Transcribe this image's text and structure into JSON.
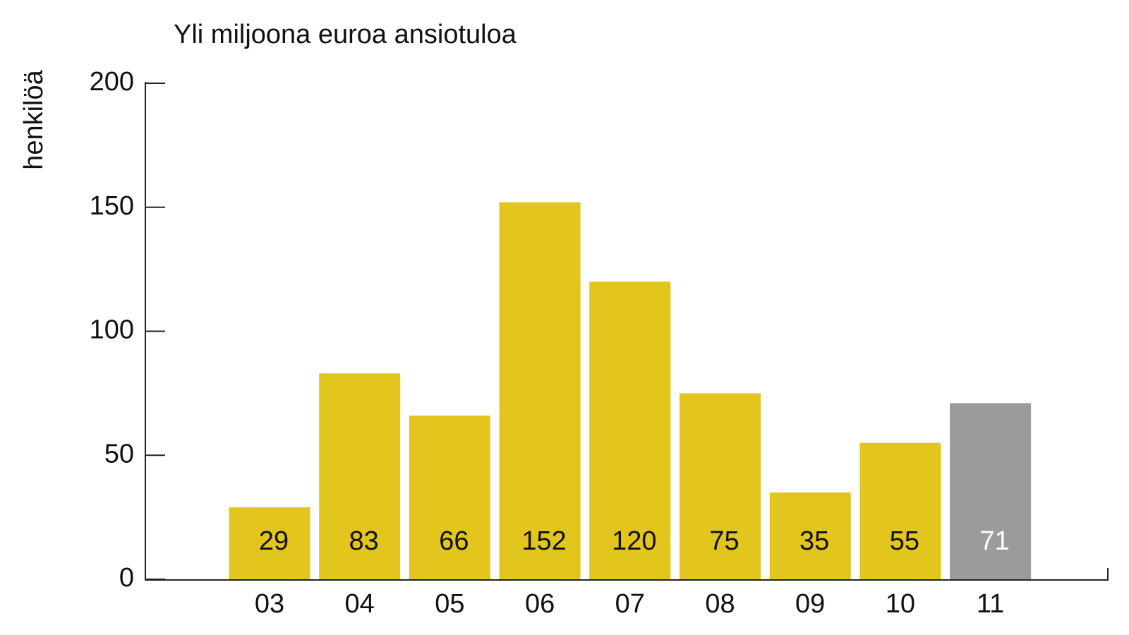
{
  "chart_data": {
    "type": "bar",
    "title": "Yli miljoona euroa ansiotuloa",
    "y_label": "henkilöä",
    "categories": [
      "03",
      "04",
      "05",
      "06",
      "07",
      "08",
      "09",
      "10",
      "11"
    ],
    "values": [
      29,
      83,
      66,
      152,
      120,
      75,
      35,
      55,
      71
    ],
    "colors": [
      "#e2c51d",
      "#e2c51d",
      "#e2c51d",
      "#e2c51d",
      "#e2c51d",
      "#e2c51d",
      "#e2c51d",
      "#e2c51d",
      "#9b9b9b"
    ],
    "value_label_colors": [
      "#111111",
      "#111111",
      "#111111",
      "#111111",
      "#111111",
      "#111111",
      "#111111",
      "#111111",
      "#ffffff"
    ],
    "ylim": [
      0,
      200
    ],
    "yticks": [
      0,
      50,
      100,
      150,
      200
    ],
    "grid": false
  }
}
